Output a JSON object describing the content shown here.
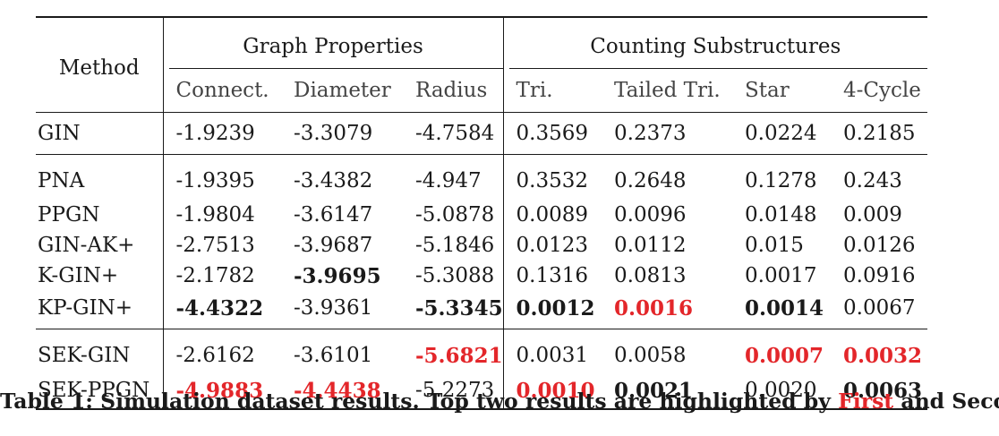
{
  "table": {
    "method_header": "Method",
    "groups": [
      {
        "label": "Graph Properties"
      },
      {
        "label": "Counting Substructures"
      }
    ],
    "columns": [
      "Connect.",
      "Diameter",
      "Radius",
      "Tri.",
      "Tailed Tri.",
      "Star",
      "4-Cycle"
    ],
    "blocks": [
      [
        {
          "method": "GIN",
          "cells": [
            {
              "v": "-1.9239",
              "s": ""
            },
            {
              "v": "-3.3079",
              "s": ""
            },
            {
              "v": "-4.7584",
              "s": ""
            },
            {
              "v": "0.3569",
              "s": ""
            },
            {
              "v": "0.2373",
              "s": ""
            },
            {
              "v": "0.0224",
              "s": ""
            },
            {
              "v": "0.2185",
              "s": ""
            }
          ]
        }
      ],
      [
        {
          "method": "PNA",
          "cells": [
            {
              "v": "-1.9395",
              "s": ""
            },
            {
              "v": "-3.4382",
              "s": ""
            },
            {
              "v": "-4.947",
              "s": ""
            },
            {
              "v": "0.3532",
              "s": ""
            },
            {
              "v": "0.2648",
              "s": ""
            },
            {
              "v": "0.1278",
              "s": ""
            },
            {
              "v": "0.243",
              "s": ""
            }
          ]
        },
        {
          "method": "PPGN",
          "cells": [
            {
              "v": "-1.9804",
              "s": ""
            },
            {
              "v": "-3.6147",
              "s": ""
            },
            {
              "v": "-5.0878",
              "s": ""
            },
            {
              "v": "0.0089",
              "s": ""
            },
            {
              "v": "0.0096",
              "s": ""
            },
            {
              "v": "0.0148",
              "s": ""
            },
            {
              "v": "0.009",
              "s": ""
            }
          ]
        },
        {
          "method": "GIN-AK+",
          "cells": [
            {
              "v": "-2.7513",
              "s": ""
            },
            {
              "v": "-3.9687",
              "s": ""
            },
            {
              "v": "-5.1846",
              "s": ""
            },
            {
              "v": "0.0123",
              "s": ""
            },
            {
              "v": "0.0112",
              "s": ""
            },
            {
              "v": "0.015",
              "s": ""
            },
            {
              "v": "0.0126",
              "s": ""
            }
          ]
        },
        {
          "method": "K-GIN+",
          "cells": [
            {
              "v": "-2.1782",
              "s": ""
            },
            {
              "v": "-3.9695",
              "s": "second"
            },
            {
              "v": "-5.3088",
              "s": ""
            },
            {
              "v": "0.1316",
              "s": ""
            },
            {
              "v": "0.0813",
              "s": ""
            },
            {
              "v": "0.0017",
              "s": ""
            },
            {
              "v": "0.0916",
              "s": ""
            }
          ]
        },
        {
          "method": "KP-GIN+",
          "cells": [
            {
              "v": "-4.4322",
              "s": "second"
            },
            {
              "v": "-3.9361",
              "s": ""
            },
            {
              "v": "-5.3345",
              "s": "second"
            },
            {
              "v": "0.0012",
              "s": "second"
            },
            {
              "v": "0.0016",
              "s": "first"
            },
            {
              "v": "0.0014",
              "s": "second"
            },
            {
              "v": "0.0067",
              "s": ""
            }
          ]
        }
      ],
      [
        {
          "method": "SEK-GIN",
          "cells": [
            {
              "v": "-2.6162",
              "s": ""
            },
            {
              "v": "-3.6101",
              "s": ""
            },
            {
              "v": "-5.6821",
              "s": "first"
            },
            {
              "v": "0.0031",
              "s": ""
            },
            {
              "v": "0.0058",
              "s": ""
            },
            {
              "v": "0.0007",
              "s": "first"
            },
            {
              "v": "0.0032",
              "s": "first"
            }
          ]
        },
        {
          "method": "SEK-PPGN",
          "cells": [
            {
              "v": "-4.9883",
              "s": "first"
            },
            {
              "v": "-4.4438",
              "s": "first"
            },
            {
              "v": "-5.2273",
              "s": ""
            },
            {
              "v": "0.0010",
              "s": "first"
            },
            {
              "v": "0.0021",
              "s": "second"
            },
            {
              "v": "0.0020",
              "s": ""
            },
            {
              "v": "0.0063",
              "s": "second"
            }
          ]
        }
      ]
    ]
  },
  "caption": {
    "prefix": "Table 1: Simulation dataset results. Top two results are highlighted by ",
    "first": "First",
    "middle": " and ",
    "second": "Second",
    "suffix": "."
  },
  "colors": {
    "first": "#e3262a",
    "text": "#1a1a1a"
  }
}
